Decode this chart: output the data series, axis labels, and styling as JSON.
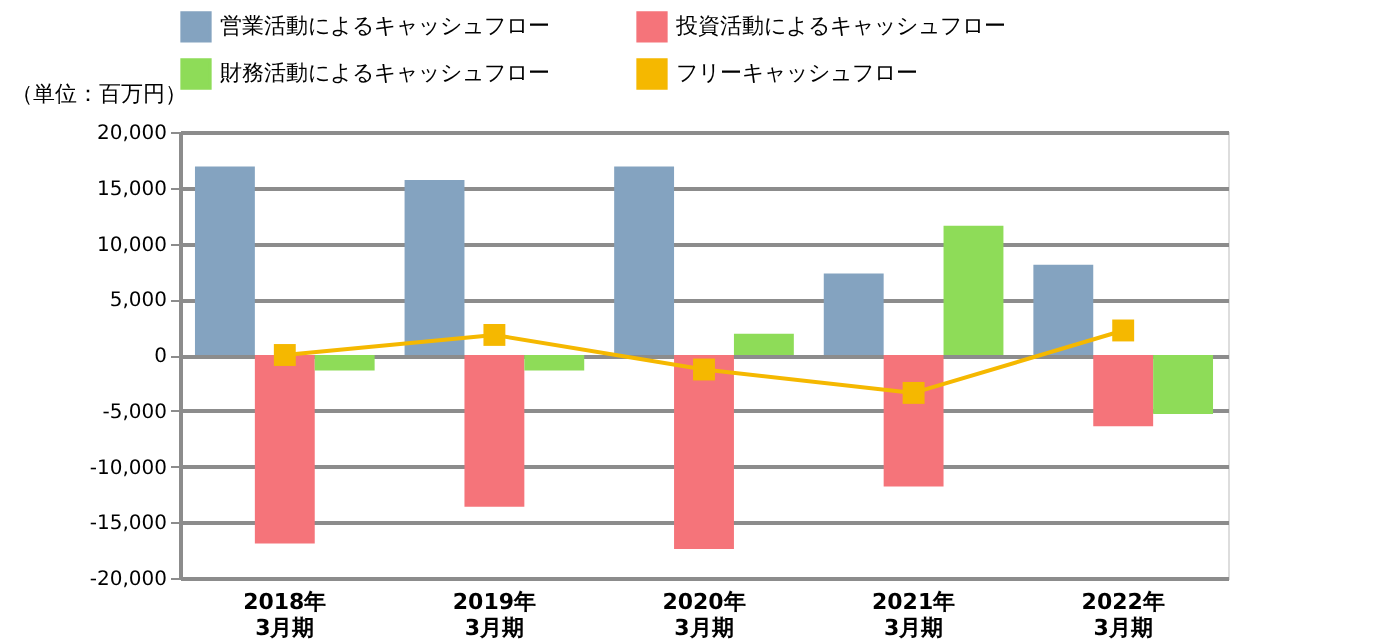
{
  "chart_data": {
    "type": "bar",
    "ylabel": "（単位：百万円）",
    "categories": [
      "2018年\n3月期",
      "2019年\n3月期",
      "2020年\n3月期",
      "2021年\n3月期",
      "2022年\n3月期"
    ],
    "series": [
      {
        "name": "営業活動によるキャッシュフロー",
        "color": "#84a3c0",
        "values": [
          16900,
          15700,
          16900,
          7300,
          8100
        ]
      },
      {
        "name": "投資活動によるキャッシュフロー",
        "color": "#f5747a",
        "values": [
          -16900,
          -13600,
          -17400,
          -11800,
          -6400
        ]
      },
      {
        "name": "財務活動によるキャッシュフロー",
        "color": "#8edc58",
        "values": [
          -1400,
          -1400,
          1900,
          11600,
          -5300
        ]
      },
      {
        "name": "フリーキャッシュフロー",
        "color": "#f5b800",
        "type": "line",
        "marker": "square",
        "values": [
          0,
          1800,
          -1300,
          -3400,
          2200
        ]
      }
    ],
    "ylim": [
      -20000,
      20000
    ],
    "yticks": [
      {
        "value": -20000,
        "label": "-20,000"
      },
      {
        "value": -15000,
        "label": "-15,000"
      },
      {
        "value": -10000,
        "label": "-10,000"
      },
      {
        "value": -5000,
        "label": "-5,000"
      },
      0,
      {
        "value": 5000,
        "label": "5,000"
      },
      {
        "value": 10000,
        "label": "10,000"
      },
      {
        "value": 15000,
        "label": "15,000"
      },
      {
        "value": 20000,
        "label": "20,000"
      }
    ],
    "grid": "y",
    "legend": "top"
  }
}
